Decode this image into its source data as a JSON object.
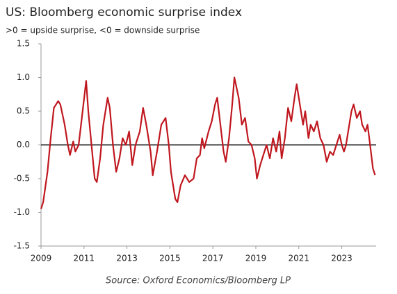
{
  "chart_data": {
    "type": "line",
    "title": "US: Bloomberg economic surprise index",
    "subtitle": ">0 = upside surprise, <0 = downside surprise",
    "source": "Source: Oxford Economics/Bloomberg LP",
    "x": [
      2009.0,
      2009.1,
      2009.3,
      2009.45,
      2009.6,
      2009.8,
      2009.9,
      2010.1,
      2010.25,
      2010.35,
      2010.5,
      2010.6,
      2010.75,
      2010.9,
      2011.1,
      2011.2,
      2011.35,
      2011.5,
      2011.6,
      2011.75,
      2011.9,
      2012.1,
      2012.2,
      2012.35,
      2012.5,
      2012.65,
      2012.8,
      2012.95,
      2013.1,
      2013.25,
      2013.4,
      2013.6,
      2013.75,
      2013.9,
      2014.1,
      2014.2,
      2014.4,
      2014.6,
      2014.8,
      2014.95,
      2015.05,
      2015.25,
      2015.35,
      2015.5,
      2015.7,
      2015.9,
      2016.1,
      2016.25,
      2016.4,
      2016.5,
      2016.6,
      2016.8,
      2016.95,
      2017.1,
      2017.2,
      2017.35,
      2017.5,
      2017.6,
      2017.75,
      2017.9,
      2018.0,
      2018.2,
      2018.35,
      2018.5,
      2018.65,
      2018.8,
      2018.95,
      2019.05,
      2019.2,
      2019.35,
      2019.5,
      2019.65,
      2019.8,
      2019.95,
      2020.1,
      2020.2,
      2020.35,
      2020.5,
      2020.65,
      2020.8,
      2020.9,
      2021.05,
      2021.2,
      2021.3,
      2021.45,
      2021.55,
      2021.7,
      2021.85,
      2022.0,
      2022.15,
      2022.3,
      2022.45,
      2022.6,
      2022.75,
      2022.9,
      2023.0,
      2023.1,
      2023.2,
      2023.3,
      2023.45,
      2023.55,
      2023.7,
      2023.85,
      2023.95,
      2024.1,
      2024.2,
      2024.3,
      2024.45,
      2024.55
    ],
    "series": [
      {
        "name": "Bloomberg economic surprise index",
        "color": "#c0171f",
        "values": [
          -0.95,
          -0.85,
          -0.4,
          0.1,
          0.55,
          0.65,
          0.6,
          0.3,
          0.0,
          -0.15,
          0.05,
          -0.1,
          0.0,
          0.4,
          0.95,
          0.5,
          0.0,
          -0.5,
          -0.55,
          -0.2,
          0.3,
          0.7,
          0.55,
          0.0,
          -0.4,
          -0.2,
          0.1,
          0.0,
          0.2,
          -0.3,
          0.0,
          0.2,
          0.55,
          0.3,
          -0.1,
          -0.45,
          -0.1,
          0.3,
          0.4,
          0.0,
          -0.4,
          -0.8,
          -0.85,
          -0.6,
          -0.45,
          -0.55,
          -0.5,
          -0.2,
          -0.15,
          0.1,
          -0.05,
          0.2,
          0.35,
          0.6,
          0.7,
          0.3,
          -0.1,
          -0.25,
          0.1,
          0.6,
          1.0,
          0.7,
          0.3,
          0.4,
          0.05,
          0.0,
          -0.2,
          -0.5,
          -0.3,
          -0.15,
          0.0,
          -0.2,
          0.1,
          -0.1,
          0.2,
          -0.2,
          0.1,
          0.55,
          0.35,
          0.7,
          0.9,
          0.6,
          0.3,
          0.5,
          0.1,
          0.3,
          0.2,
          0.35,
          0.1,
          0.0,
          -0.25,
          -0.1,
          -0.15,
          0.0,
          0.15,
          0.0,
          -0.1,
          0.0,
          0.2,
          0.5,
          0.6,
          0.4,
          0.5,
          0.3,
          0.2,
          0.3,
          0.05,
          -0.35,
          -0.45
        ]
      }
    ],
    "xlim": [
      2009,
      2024.6
    ],
    "xticks": [
      2009,
      2011,
      2013,
      2015,
      2017,
      2019,
      2021,
      2023
    ],
    "ylim": [
      -1.5,
      1.5
    ],
    "yticks": [
      1.5,
      {
        "value": 1,
        "label": "1.0"
      },
      0.5,
      {
        "value": 0,
        "label": "0.0"
      },
      -0.5,
      {
        "value": -1,
        "label": "-1.0"
      },
      -1.5
    ],
    "grid": false
  }
}
